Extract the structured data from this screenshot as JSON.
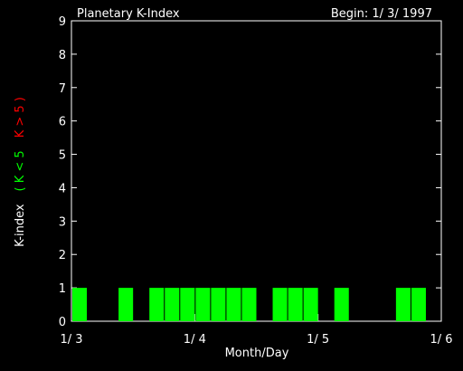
{
  "chart_data": {
    "type": "bar",
    "title": "Planetary K-Index",
    "subtitle": "Begin: 1/ 3/ 1997",
    "xlabel": "Month/Day",
    "ylabel": "K-index",
    "legend": [
      {
        "label": "( K < 5",
        "color": "#00ff00"
      },
      {
        "label": "K > 5 )",
        "color": "#ff0000"
      }
    ],
    "x": [
      0,
      0.125,
      0.25,
      0.375,
      0.5,
      0.625,
      0.75,
      0.875,
      1,
      1.125,
      1.25,
      1.375,
      1.5,
      1.625,
      1.75,
      1.875,
      2,
      2.125,
      2.25,
      2.375,
      2.5,
      2.625,
      2.75,
      2.875
    ],
    "values": [
      1,
      0,
      0,
      1,
      0,
      1,
      1,
      1,
      1,
      1,
      1,
      1,
      0,
      1,
      1,
      1,
      0,
      1,
      0,
      0,
      0,
      1,
      1,
      0
    ],
    "bar_width": 0.125,
    "color": "#00ff00",
    "xlim": [
      0,
      3
    ],
    "xticks": [
      {
        "value": 0,
        "label": "1/ 3"
      },
      {
        "value": 1,
        "label": "1/ 4"
      },
      {
        "value": 2,
        "label": "1/ 5"
      },
      {
        "value": 3,
        "label": "1/ 6"
      }
    ],
    "ylim": [
      0,
      9
    ],
    "yticks": [
      0,
      1,
      2,
      3,
      4,
      5,
      6,
      7,
      8,
      9
    ]
  }
}
